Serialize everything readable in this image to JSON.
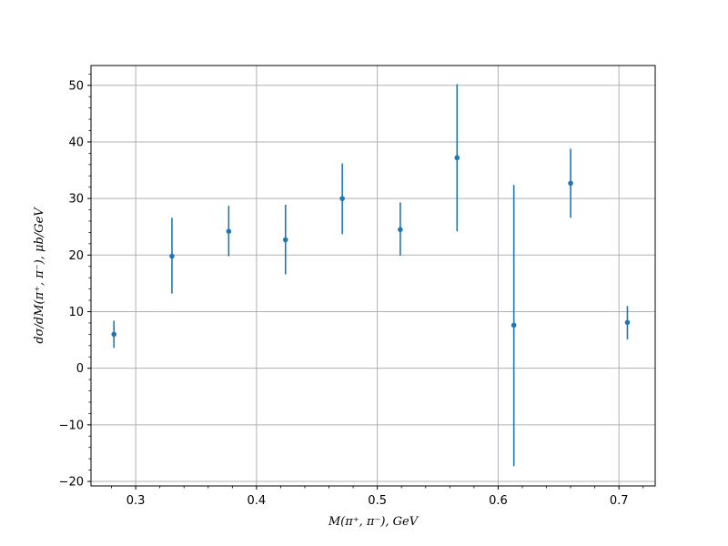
{
  "chart_data": {
    "type": "scatter",
    "style": "errorbar",
    "xlabel": "M(π⁺, π⁻), GeV",
    "ylabel": "dσ/dM(π⁺, π⁻), μb/GeV",
    "xlim": [
      0.263,
      0.73
    ],
    "ylim": [
      -20.8,
      53.5
    ],
    "xticks": [
      0.3,
      0.4,
      0.5,
      0.6,
      0.7
    ],
    "xtick_labels": [
      "0.3",
      "0.4",
      "0.5",
      "0.6",
      "0.7"
    ],
    "yticks": [
      -20,
      -10,
      0,
      10,
      20,
      30,
      40,
      50
    ],
    "ytick_labels": [
      "−20",
      "−10",
      "0",
      "10",
      "20",
      "30",
      "40",
      "50"
    ],
    "grid": true,
    "color": "#1f77b4",
    "points": [
      {
        "x": 0.282,
        "y": 6.0,
        "yerr_low": 3.6,
        "yerr_high": 8.4
      },
      {
        "x": 0.33,
        "y": 19.8,
        "yerr_low": 13.2,
        "yerr_high": 26.6
      },
      {
        "x": 0.377,
        "y": 24.2,
        "yerr_low": 19.8,
        "yerr_high": 28.7
      },
      {
        "x": 0.424,
        "y": 22.7,
        "yerr_low": 16.6,
        "yerr_high": 28.9
      },
      {
        "x": 0.471,
        "y": 30.0,
        "yerr_low": 23.7,
        "yerr_high": 36.2
      },
      {
        "x": 0.519,
        "y": 24.5,
        "yerr_low": 19.9,
        "yerr_high": 29.3
      },
      {
        "x": 0.566,
        "y": 37.2,
        "yerr_low": 24.2,
        "yerr_high": 50.2
      },
      {
        "x": 0.613,
        "y": 7.6,
        "yerr_low": -17.3,
        "yerr_high": 32.4
      },
      {
        "x": 0.66,
        "y": 32.7,
        "yerr_low": 26.6,
        "yerr_high": 38.8
      },
      {
        "x": 0.707,
        "y": 8.1,
        "yerr_low": 5.1,
        "yerr_high": 11.0
      }
    ]
  }
}
